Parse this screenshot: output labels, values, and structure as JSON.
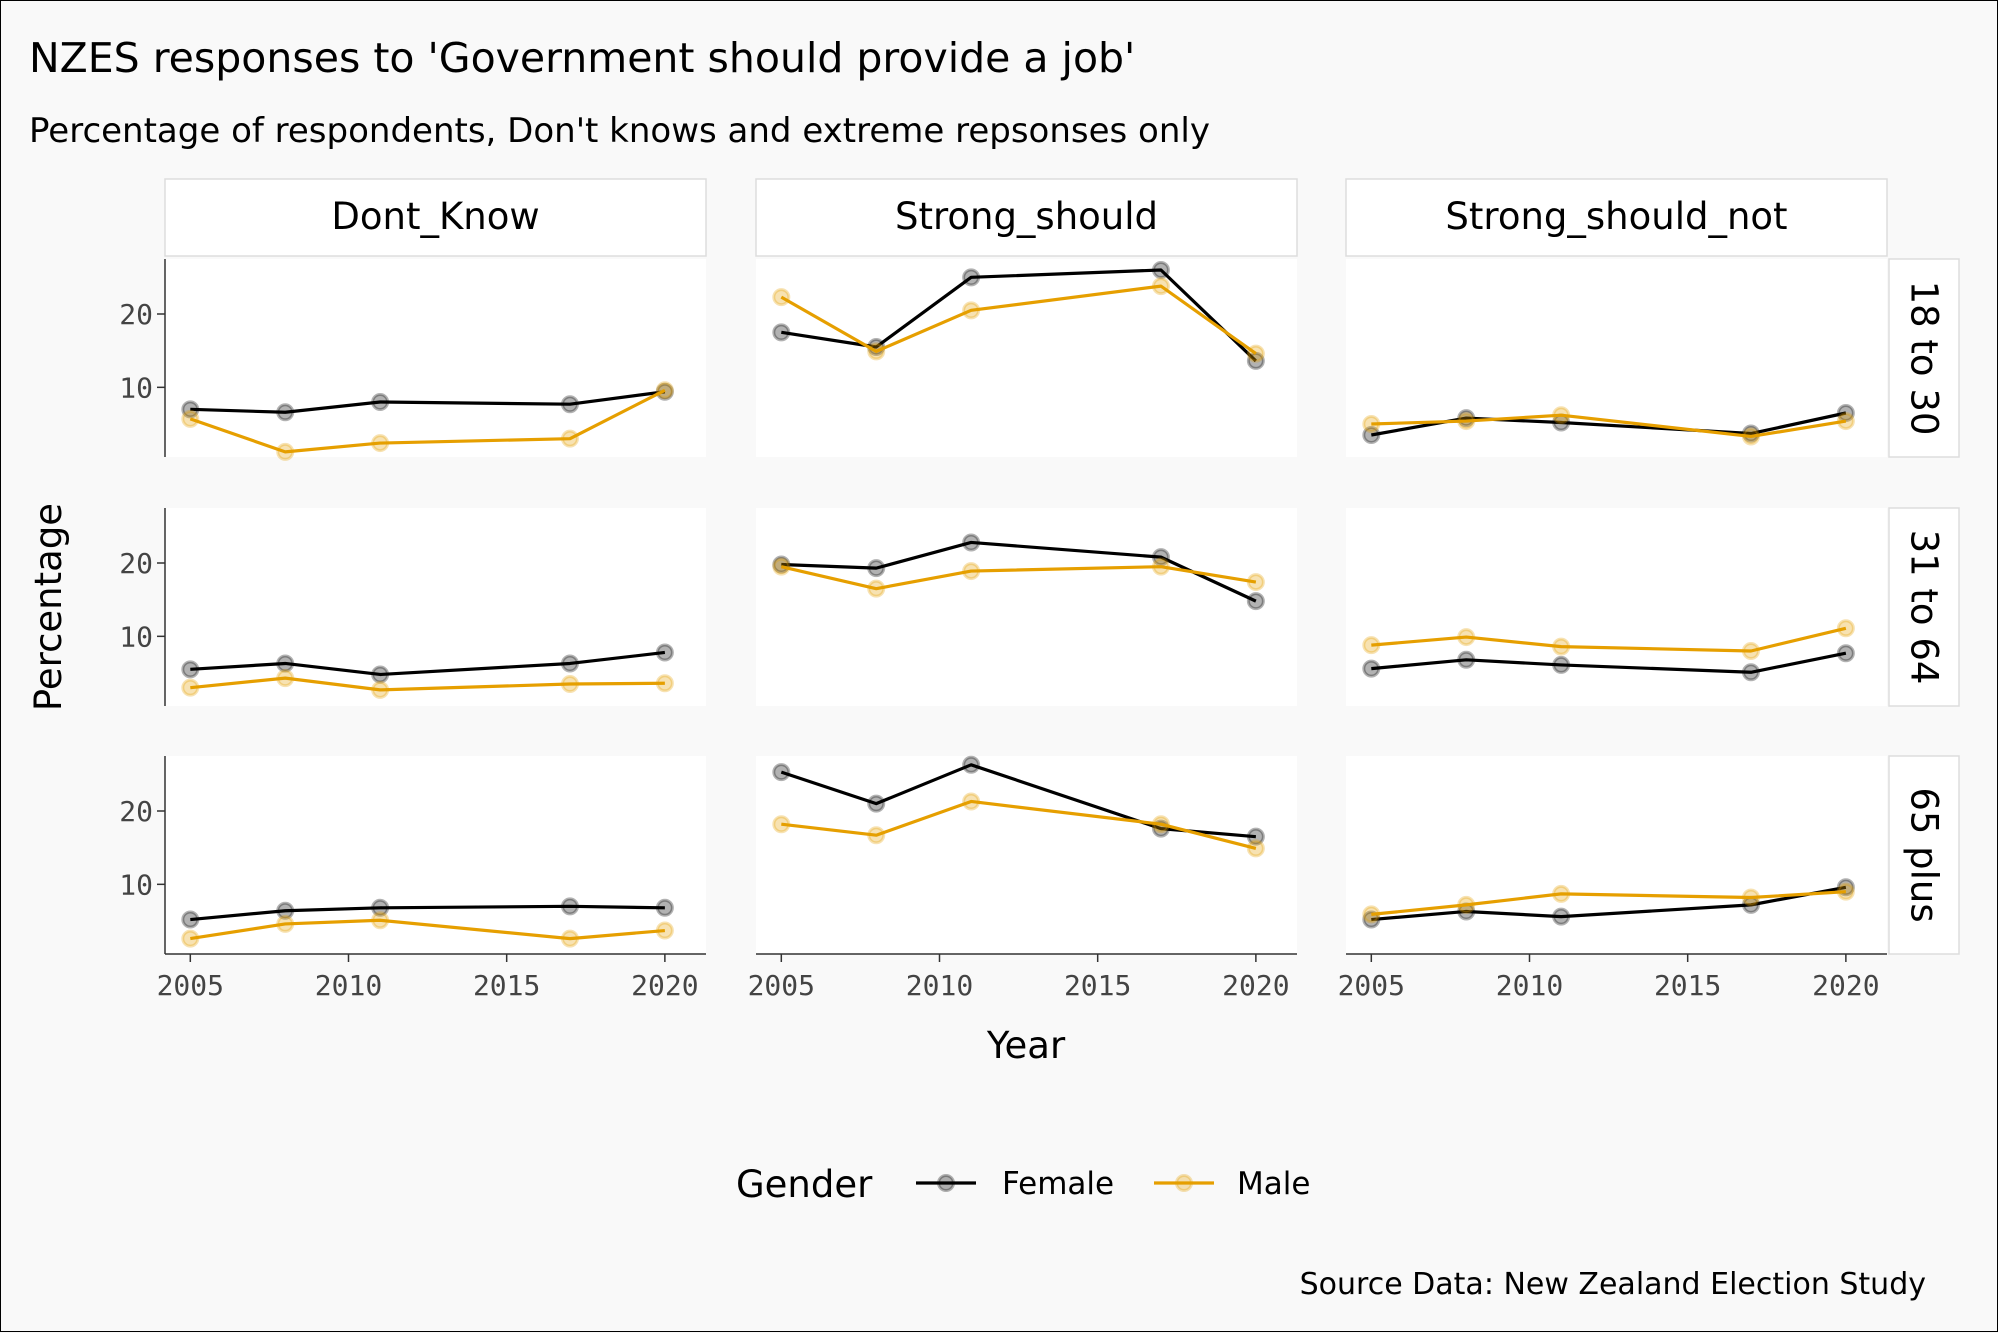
{
  "chart_data": {
    "type": "line",
    "title": "NZES responses to 'Government should provide a job'",
    "subtitle": "Percentage of respondents, Don't knows and extreme repsonses only",
    "xlabel": "Year",
    "ylabel": "Percentage",
    "caption": "Source Data: New Zealand Election Study",
    "legend": {
      "title": "Gender",
      "position": "bottom"
    },
    "x": [
      2005,
      2008,
      2011,
      2017,
      2020
    ],
    "x_ticks": [
      "2005",
      "2010",
      "2015",
      "2020"
    ],
    "y_ticks": [
      "10",
      "20"
    ],
    "xlim": [
      2004.2,
      2021.3
    ],
    "ylim": [
      0.5,
      27.5
    ],
    "grid": false,
    "columns": [
      "Dont_Know",
      "Strong_should",
      "Strong_should_not"
    ],
    "rows": [
      "18 to 30",
      "31 to 64",
      "65 plus"
    ],
    "series_styles": [
      {
        "name": "Female",
        "color": "#000000"
      },
      {
        "name": "Male",
        "color": "#E69F00"
      }
    ],
    "panels": [
      {
        "row": "18 to 30",
        "column": "Dont_Know",
        "series": [
          {
            "name": "Female",
            "values": [
              7.0,
              6.6,
              8.0,
              7.7,
              9.4
            ]
          },
          {
            "name": "Male",
            "values": [
              5.7,
              1.2,
              2.4,
              3.0,
              9.6
            ]
          }
        ]
      },
      {
        "row": "18 to 30",
        "column": "Strong_should",
        "series": [
          {
            "name": "Female",
            "values": [
              17.5,
              15.5,
              25.0,
              26.0,
              13.6
            ]
          },
          {
            "name": "Male",
            "values": [
              22.3,
              14.9,
              20.5,
              23.8,
              14.6
            ]
          }
        ]
      },
      {
        "row": "18 to 30",
        "column": "Strong_should_not",
        "series": [
          {
            "name": "Female",
            "values": [
              3.5,
              5.8,
              5.2,
              3.7,
              6.5
            ]
          },
          {
            "name": "Male",
            "values": [
              5.0,
              5.4,
              6.2,
              3.3,
              5.4
            ]
          }
        ]
      },
      {
        "row": "31 to 64",
        "column": "Dont_Know",
        "series": [
          {
            "name": "Female",
            "values": [
              5.5,
              6.3,
              4.8,
              6.3,
              7.8
            ]
          },
          {
            "name": "Male",
            "values": [
              3.0,
              4.3,
              2.7,
              3.5,
              3.6
            ]
          }
        ]
      },
      {
        "row": "31 to 64",
        "column": "Strong_should",
        "series": [
          {
            "name": "Female",
            "values": [
              19.8,
              19.3,
              22.8,
              20.8,
              14.8
            ]
          },
          {
            "name": "Male",
            "values": [
              19.5,
              16.5,
              18.9,
              19.5,
              17.4
            ]
          }
        ]
      },
      {
        "row": "31 to 64",
        "column": "Strong_should_not",
        "series": [
          {
            "name": "Female",
            "values": [
              5.6,
              6.8,
              6.1,
              5.1,
              7.7
            ]
          },
          {
            "name": "Male",
            "values": [
              8.8,
              9.9,
              8.6,
              8.0,
              11.1
            ]
          }
        ]
      },
      {
        "row": "65 plus",
        "column": "Dont_Know",
        "series": [
          {
            "name": "Female",
            "values": [
              5.2,
              6.4,
              6.8,
              7.0,
              6.8
            ]
          },
          {
            "name": "Male",
            "values": [
              2.6,
              4.6,
              5.1,
              2.6,
              3.7
            ]
          }
        ]
      },
      {
        "row": "65 plus",
        "column": "Strong_should",
        "series": [
          {
            "name": "Female",
            "values": [
              25.3,
              21.0,
              26.3,
              17.6,
              16.5
            ]
          },
          {
            "name": "Male",
            "values": [
              18.2,
              16.7,
              21.3,
              18.2,
              14.9
            ]
          }
        ]
      },
      {
        "row": "65 plus",
        "column": "Strong_should_not",
        "series": [
          {
            "name": "Female",
            "values": [
              5.2,
              6.3,
              5.6,
              7.2,
              9.6
            ]
          },
          {
            "name": "Male",
            "values": [
              5.9,
              7.2,
              8.7,
              8.2,
              9.0
            ]
          }
        ]
      }
    ]
  }
}
